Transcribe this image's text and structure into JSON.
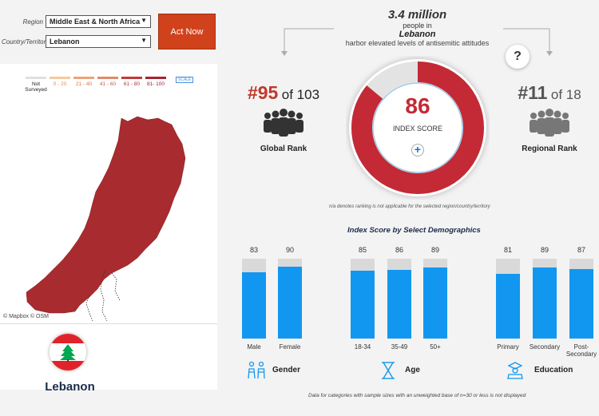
{
  "filters": {
    "region_label": "Region",
    "region_value": "Middle East & North Africa",
    "country_label": "Country/Territory",
    "country_value": "Lebanon",
    "act_button": "Act Now"
  },
  "map": {
    "legend": [
      {
        "label": "Not Surveyed",
        "color": "#e0e0e0"
      },
      {
        "label": "0 - 20",
        "color": "#f5c9a0"
      },
      {
        "label": "21 - 40",
        "color": "#eda379"
      },
      {
        "label": "41 - 60",
        "color": "#e08a6a"
      },
      {
        "label": "61 - 80",
        "color": "#c13a3a"
      },
      {
        "label": "81- 100",
        "color": "#a52432"
      }
    ],
    "scale_label": "SCALE",
    "attribution": "© Mapbox © OSM",
    "country_name": "Lebanon",
    "country_color": "#a82b2f"
  },
  "headline": {
    "people": "3.4 million",
    "people_in": "people in",
    "country": "Lebanon",
    "description": "harbor elevated levels of antisemitic attitudes"
  },
  "global_rank": {
    "rank": "#95",
    "of": "of 103",
    "label": "Global Rank"
  },
  "regional_rank": {
    "rank": "#11",
    "of": "of 18",
    "label": "Regional Rank"
  },
  "index": {
    "score": "86",
    "label": "INDEX SCORE",
    "value": 86,
    "color": "#c32a35"
  },
  "na_note": "n/a denotes ranking is not applicable for the selected region/country/territory",
  "demographics": {
    "title": "Index Score by Select Demographics",
    "groups": [
      {
        "label": "Gender",
        "icon": "gender-icon",
        "bars": [
          {
            "category": "Male",
            "value": 83,
            "display": "83"
          },
          {
            "category": "Female",
            "value": 90,
            "display": "90"
          }
        ]
      },
      {
        "label": "Age",
        "icon": "hourglass-icon",
        "bars": [
          {
            "category": "18-34",
            "value": 85,
            "display": "85"
          },
          {
            "category": "35-49",
            "value": 86,
            "display": "86"
          },
          {
            "category": "50+",
            "value": 89,
            "display": "89"
          }
        ]
      },
      {
        "label": "Education",
        "icon": "graduate-icon",
        "bars": [
          {
            "category": "Primary",
            "value": 81,
            "display": "81"
          },
          {
            "category": "Secondary",
            "value": 89,
            "display": "89"
          },
          {
            "category": "Post-Secondary",
            "value": 87,
            "display": "87"
          }
        ]
      }
    ],
    "bar_color": "#1197f0",
    "track_color": "#d9d9d9"
  },
  "footnote": "Data for categories with sample sizes with an unweighted base of n=30 or less is not displayed",
  "chart_data": {
    "type": "bar",
    "title": "Index Score by Select Demographics",
    "categories": [
      "Male",
      "Female",
      "18-34",
      "35-49",
      "50+",
      "Primary",
      "Secondary",
      "Post-Secondary"
    ],
    "values": [
      83,
      90,
      85,
      86,
      89,
      81,
      89,
      87
    ],
    "ylim": [
      0,
      100
    ]
  }
}
